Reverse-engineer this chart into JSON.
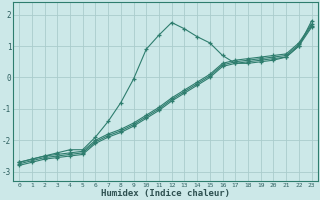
{
  "xlabel": "Humidex (Indice chaleur)",
  "ylabel": "",
  "bg_color": "#cce8e8",
  "grid_color": "#aacccc",
  "line_color": "#2e7d6e",
  "xlim": [
    -0.5,
    23.5
  ],
  "ylim": [
    -3.3,
    2.4
  ],
  "xticks": [
    0,
    1,
    2,
    3,
    4,
    5,
    6,
    7,
    8,
    9,
    10,
    11,
    12,
    13,
    14,
    15,
    16,
    17,
    18,
    19,
    20,
    21,
    22,
    23
  ],
  "yticks": [
    -3,
    -2,
    -1,
    0,
    1,
    2
  ],
  "line1_x": [
    0,
    1,
    2,
    3,
    4,
    5,
    6,
    7,
    8,
    9,
    10,
    11,
    12,
    13,
    14,
    15,
    16,
    17,
    18,
    19,
    20,
    21,
    22,
    23
  ],
  "line1_y": [
    -2.7,
    -2.6,
    -2.5,
    -2.4,
    -2.3,
    -2.3,
    -1.9,
    -1.4,
    -0.8,
    -0.05,
    0.9,
    1.35,
    1.75,
    1.55,
    1.3,
    1.1,
    0.7,
    0.45,
    0.45,
    0.5,
    0.55,
    0.65,
    1.0,
    1.8
  ],
  "line2_x": [
    0,
    1,
    2,
    3,
    4,
    5,
    6,
    7,
    8,
    9,
    10,
    11,
    12,
    13,
    14,
    15,
    16,
    17,
    18,
    19,
    20,
    21,
    22,
    23
  ],
  "line2_y": [
    -2.7,
    -2.6,
    -2.5,
    -2.45,
    -2.4,
    -2.35,
    -2.0,
    -1.8,
    -1.65,
    -1.45,
    -1.2,
    -0.95,
    -0.65,
    -0.4,
    -0.15,
    0.1,
    0.45,
    0.55,
    0.6,
    0.65,
    0.7,
    0.75,
    1.1,
    1.7
  ],
  "line3_x": [
    0,
    1,
    2,
    3,
    4,
    5,
    6,
    7,
    8,
    9,
    10,
    11,
    12,
    13,
    14,
    15,
    16,
    17,
    18,
    19,
    20,
    21,
    22,
    23
  ],
  "line3_y": [
    -2.75,
    -2.65,
    -2.55,
    -2.5,
    -2.45,
    -2.4,
    -2.05,
    -1.85,
    -1.7,
    -1.5,
    -1.25,
    -1.0,
    -0.7,
    -0.45,
    -0.2,
    0.05,
    0.4,
    0.5,
    0.55,
    0.6,
    0.65,
    0.7,
    1.05,
    1.65
  ],
  "line4_x": [
    0,
    1,
    2,
    3,
    4,
    5,
    6,
    7,
    8,
    9,
    10,
    11,
    12,
    13,
    14,
    15,
    16,
    17,
    18,
    19,
    20,
    21,
    22,
    23
  ],
  "line4_y": [
    -2.8,
    -2.7,
    -2.6,
    -2.55,
    -2.5,
    -2.45,
    -2.1,
    -1.9,
    -1.75,
    -1.55,
    -1.3,
    -1.05,
    -0.75,
    -0.5,
    -0.25,
    0.0,
    0.35,
    0.45,
    0.5,
    0.55,
    0.6,
    0.65,
    1.0,
    1.6
  ]
}
